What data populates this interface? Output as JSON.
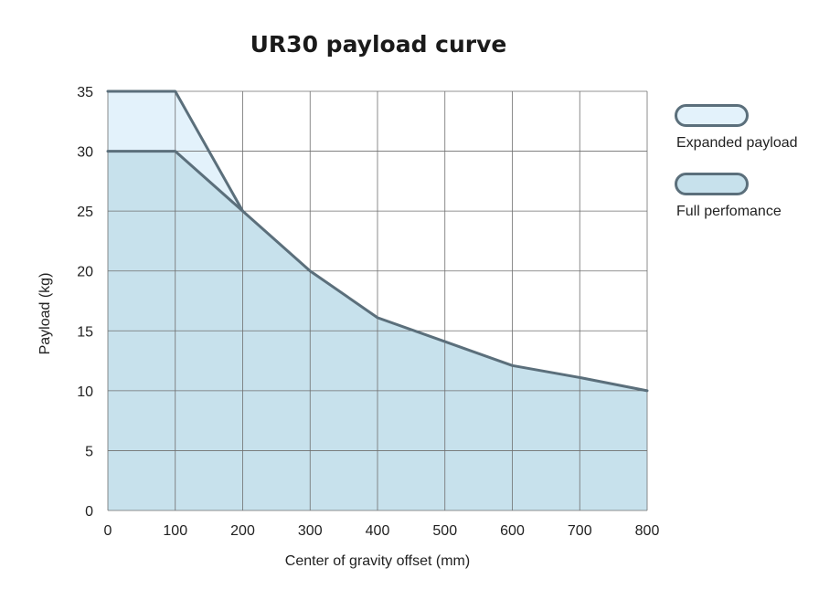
{
  "chart_data": {
    "type": "area",
    "title": "UR30 payload curve",
    "xlabel": "Center of gravity offset (mm)",
    "ylabel": "Payload (kg)",
    "xlim": [
      0,
      800
    ],
    "ylim": [
      0,
      35
    ],
    "x_ticks": [
      0,
      100,
      200,
      300,
      400,
      500,
      600,
      700,
      800
    ],
    "y_ticks": [
      0,
      5,
      10,
      15,
      20,
      25,
      30,
      35
    ],
    "grid": true,
    "legend_position": "right",
    "series": [
      {
        "name": "Expanded payload",
        "color": "#e3f2fb",
        "line_color": "#5b6f7b",
        "points": [
          [
            0,
            35
          ],
          [
            100,
            35
          ],
          [
            200,
            25
          ]
        ]
      },
      {
        "name": "Full perfomance",
        "color": "#c7e1ec",
        "line_color": "#5b6f7b",
        "points": [
          [
            0,
            30
          ],
          [
            100,
            30
          ],
          [
            200,
            25
          ],
          [
            300,
            20
          ],
          [
            400,
            16.1
          ],
          [
            500,
            14.1
          ],
          [
            600,
            12.1
          ],
          [
            700,
            11.1
          ],
          [
            800,
            10
          ]
        ]
      }
    ]
  }
}
